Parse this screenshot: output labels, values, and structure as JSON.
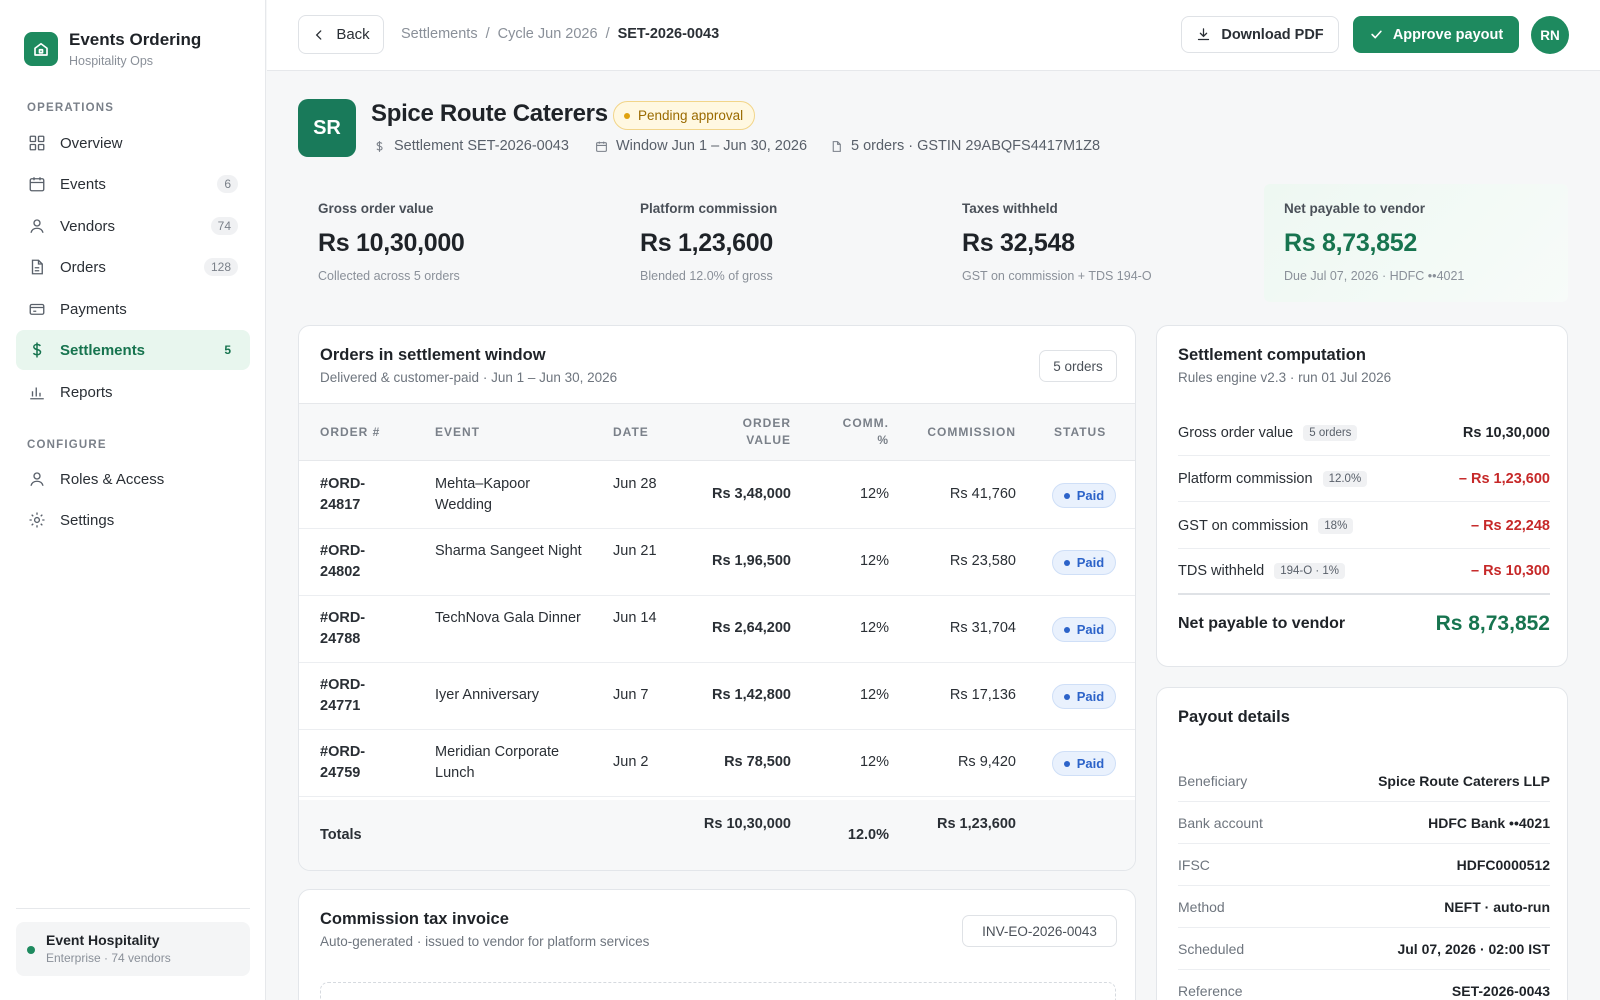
{
  "brand": {
    "title": "Events Ordering",
    "subtitle": "Hospitality Ops"
  },
  "sidebar": {
    "sections": [
      {
        "label": "OPERATIONS",
        "items": [
          {
            "label": "Overview",
            "icon": "grid-icon",
            "count": null,
            "active": false
          },
          {
            "label": "Events",
            "icon": "calendar-icon",
            "count": "6",
            "active": false
          },
          {
            "label": "Vendors",
            "icon": "user-icon",
            "count": "74",
            "active": false
          },
          {
            "label": "Orders",
            "icon": "document-icon",
            "count": "128",
            "active": false
          },
          {
            "label": "Payments",
            "icon": "card-icon",
            "count": null,
            "active": false
          },
          {
            "label": "Settlements",
            "icon": "dollar-icon",
            "count": "5",
            "active": true
          },
          {
            "label": "Reports",
            "icon": "bar-chart-icon",
            "count": null,
            "active": false
          }
        ]
      },
      {
        "label": "CONFIGURE",
        "items": [
          {
            "label": "Roles & Access",
            "icon": "user-icon",
            "count": null,
            "active": false
          },
          {
            "label": "Settings",
            "icon": "gear-icon",
            "count": null,
            "active": false
          }
        ]
      }
    ],
    "org": {
      "title": "Event Hospitality",
      "subtitle": "Enterprise · 74 vendors"
    }
  },
  "topbar": {
    "back_label": "Back",
    "breadcrumbs": [
      "Settlements",
      "Cycle Jun 2026",
      "SET-2026-0043"
    ],
    "download_label": "Download PDF",
    "approve_label": "Approve payout",
    "user_initials": "RN"
  },
  "vendor": {
    "initials": "SR",
    "name": "Spice Route Caterers",
    "status": "Pending approval",
    "meta": [
      {
        "icon": "dollar-icon",
        "text": "Settlement SET-2026-0043"
      },
      {
        "icon": "calendar-icon",
        "text": "Window Jun 1 – Jun 30, 2026"
      },
      {
        "icon": "document-icon",
        "text": "5 orders · GSTIN 29ABQFS4417M1Z8"
      }
    ]
  },
  "kpis": [
    {
      "label": "Gross order value",
      "value": "Rs 10,30,000",
      "sub": "Collected across 5 orders"
    },
    {
      "label": "Platform commission",
      "value": "Rs 1,23,600",
      "sub": "Blended 12.0% of gross"
    },
    {
      "label": "Taxes withheld",
      "value": "Rs 32,548",
      "sub": "GST on commission + TDS 194-O"
    },
    {
      "label": "Net payable to vendor",
      "value": "Rs 8,73,852",
      "sub": "Due Jul 07, 2026 · HDFC ••4021"
    }
  ],
  "orders": {
    "title": "Orders in settlement window",
    "subtitle": "Delivered & customer-paid · Jun 1 – Jun 30, 2026",
    "count_label": "5 orders",
    "columns": {
      "order": "ORDER #",
      "event": "EVENT",
      "date": "DATE",
      "value": "ORDER VALUE",
      "pct": "COMM. %",
      "commission": "COMMISSION",
      "status": "STATUS"
    },
    "rows": [
      {
        "order": "#ORD-24817",
        "event": "Mehta–Kapoor Wedding",
        "date": "Jun 28",
        "value": "Rs 3,48,000",
        "pct": "12%",
        "commission": "Rs 41,760",
        "status": "Paid"
      },
      {
        "order": "#ORD-24802",
        "event": "Sharma Sangeet Night",
        "date": "Jun 21",
        "value": "Rs 1,96,500",
        "pct": "12%",
        "commission": "Rs 23,580",
        "status": "Paid"
      },
      {
        "order": "#ORD-24788",
        "event": "TechNova Gala Dinner",
        "date": "Jun 14",
        "value": "Rs 2,64,200",
        "pct": "12%",
        "commission": "Rs 31,704",
        "status": "Paid"
      },
      {
        "order": "#ORD-24771",
        "event": "Iyer Anniversary",
        "date": "Jun 7",
        "value": "Rs 1,42,800",
        "pct": "12%",
        "commission": "Rs 17,136",
        "status": "Paid"
      },
      {
        "order": "#ORD-24759",
        "event": "Meridian Corporate Lunch",
        "date": "Jun 2",
        "value": "Rs 78,500",
        "pct": "12%",
        "commission": "Rs 9,420",
        "status": "Paid"
      }
    ],
    "totals": {
      "label": "Totals",
      "value": "Rs 10,30,000",
      "pct": "12.0%",
      "commission": "Rs 1,23,600"
    }
  },
  "invoice": {
    "title": "Commission tax invoice",
    "subtitle": "Auto-generated · issued to vendor for platform services",
    "number": "INV-EO-2026-0043"
  },
  "computation": {
    "title": "Settlement computation",
    "subtitle": "Rules engine v2.3 · run 01 Jul 2026",
    "rows": [
      {
        "label": "Gross order value",
        "pill": "5 orders",
        "value": "Rs 10,30,000",
        "negative": false
      },
      {
        "label": "Platform commission",
        "pill": "12.0%",
        "value": "– Rs 1,23,600",
        "negative": true
      },
      {
        "label": "GST on commission",
        "pill": "18%",
        "value": "– Rs 22,248",
        "negative": true
      },
      {
        "label": "TDS withheld",
        "pill": "194-O · 1%",
        "value": "– Rs 10,300",
        "negative": true
      }
    ],
    "net_label": "Net payable to vendor",
    "net_value": "Rs 8,73,852"
  },
  "payout": {
    "title": "Payout details",
    "rows": [
      {
        "label": "Beneficiary",
        "value": "Spice Route Caterers LLP"
      },
      {
        "label": "Bank account",
        "value": "HDFC Bank ••4021"
      },
      {
        "label": "IFSC",
        "value": "HDFC0000512"
      },
      {
        "label": "Method",
        "value": "NEFT · auto-run"
      },
      {
        "label": "Scheduled",
        "value": "Jul 07, 2026 · 02:00 IST"
      },
      {
        "label": "Reference",
        "value": "SET-2026-0043"
      }
    ]
  },
  "colors": {
    "brand": "#1e8a5f",
    "negative": "#c62828",
    "paid": "#2c63c9",
    "pending": "#9a6a00"
  }
}
